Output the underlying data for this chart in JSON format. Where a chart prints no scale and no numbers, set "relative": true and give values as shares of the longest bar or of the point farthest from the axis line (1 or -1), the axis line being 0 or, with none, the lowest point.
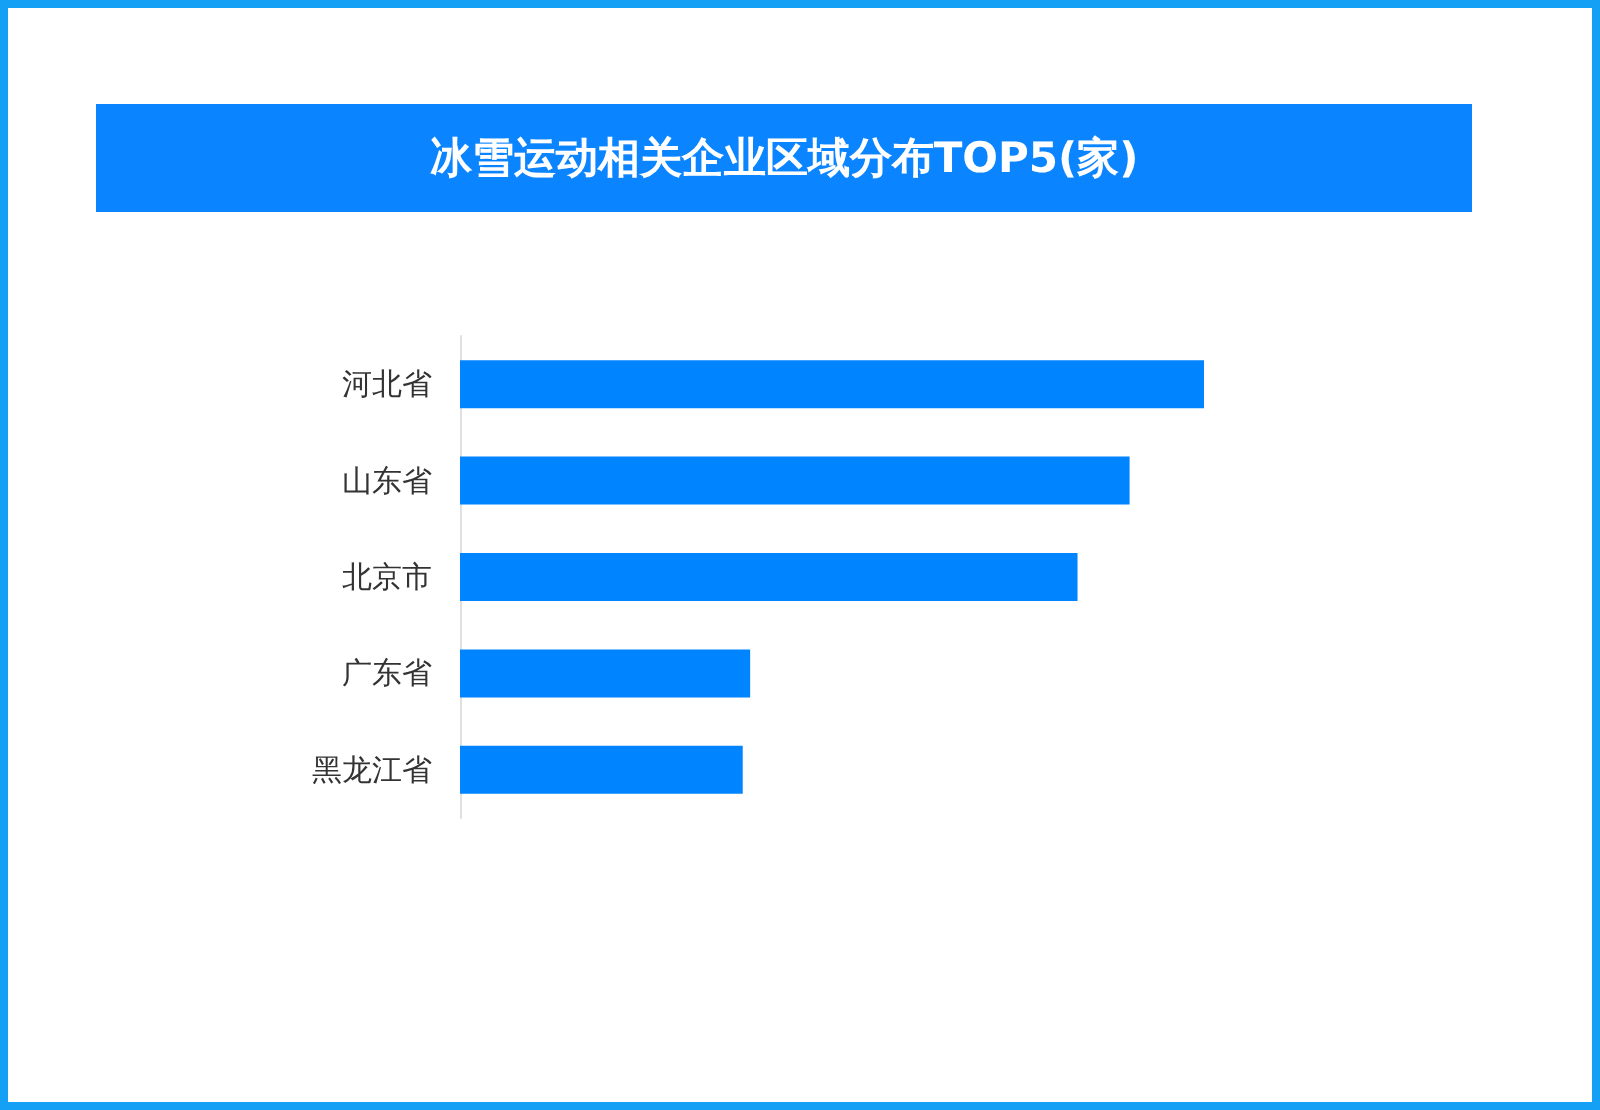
{
  "chart_data": {
    "type": "bar",
    "title": "冰雪运动相关企业区域分布TOP5(家)",
    "orientation": "horizontal",
    "relative": true,
    "categories": [
      "河北省",
      "山东省",
      "北京市",
      "广东省",
      "黑龙江省"
    ],
    "values": [
      1,
      0.9,
      0.83,
      0.39,
      0.38
    ],
    "color": "#0084ff"
  }
}
